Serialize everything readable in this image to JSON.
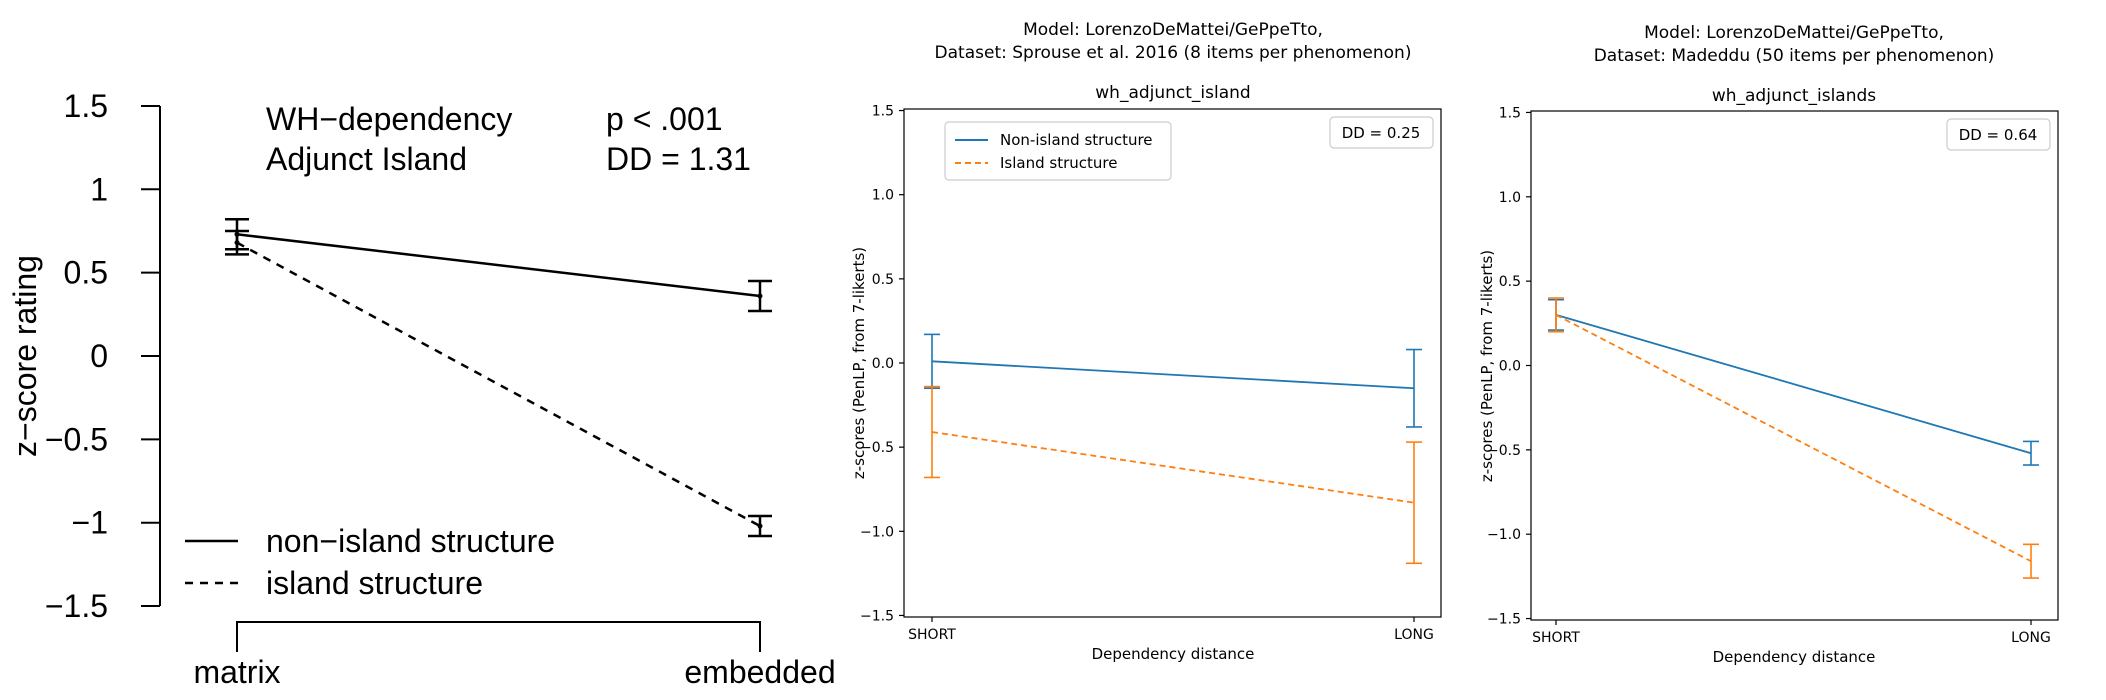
{
  "chart_data": [
    {
      "type": "line",
      "title": "",
      "ylabel": "z−score rating",
      "xlabel": "",
      "categories": [
        "matrix",
        "embedded"
      ],
      "ylim": [
        -1.5,
        1.5
      ],
      "yticks": [
        1.5,
        1,
        0.5,
        0,
        -0.5,
        -1,
        -1.5
      ],
      "ytick_labels": [
        "1.5",
        "1",
        "0.5",
        "0",
        "−0.5",
        "−1",
        "−1.5"
      ],
      "annotations": {
        "line1_left": "WH−dependency",
        "line1_right": "p < .001",
        "line2_left": "Adjunct Island",
        "line2_right": "DD = 1.31"
      },
      "legend_position": "bottom-left",
      "series": [
        {
          "name": "non−island structure",
          "values": [
            0.73,
            0.36
          ],
          "err": [
            0.09,
            0.09
          ],
          "style": "solid",
          "color": "#000000"
        },
        {
          "name": "island structure",
          "values": [
            0.68,
            -1.02
          ],
          "err": [
            0.07,
            0.06
          ],
          "style": "dashed",
          "color": "#000000"
        }
      ]
    },
    {
      "type": "line",
      "suptitle": [
        "Model: LorenzoDeMattei/GePpeTto,",
        "Dataset: Sprouse et al. 2016 (8 items per phenomenon)"
      ],
      "title": "wh_adjunct_island",
      "xlabel": "Dependency distance",
      "ylabel": "z-scores (PenLP, from 7-likerts)",
      "categories": [
        "SHORT",
        "LONG"
      ],
      "ylim": [
        -1.5,
        1.5
      ],
      "yticks": [
        1.5,
        1.0,
        0.5,
        0.0,
        -0.5,
        -1.0,
        -1.5
      ],
      "ytick_labels": [
        "1.5",
        "1.0",
        "0.5",
        "0.0",
        "−0.5",
        "−1.0",
        "−1.5"
      ],
      "dd_label": "DD = 0.25",
      "legend_position": "top-left",
      "series": [
        {
          "name": "Non-island structure",
          "values": [
            0.01,
            -0.15
          ],
          "err": [
            0.16,
            0.23
          ],
          "style": "solid",
          "color": "#1f77b4"
        },
        {
          "name": "Island structure",
          "values": [
            -0.41,
            -0.83
          ],
          "err": [
            0.27,
            0.36
          ],
          "style": "dashed",
          "color": "#ff7f0e"
        }
      ]
    },
    {
      "type": "line",
      "suptitle": [
        "Model: LorenzoDeMattei/GePpeTto,",
        "Dataset: Madeddu (50 items per phenomenon)"
      ],
      "title": "wh_adjunct_islands",
      "xlabel": "Dependency distance",
      "ylabel": "z-scores (PenLP, from 7-likerts)",
      "categories": [
        "SHORT",
        "LONG"
      ],
      "ylim": [
        -1.5,
        1.5
      ],
      "yticks": [
        1.5,
        1.0,
        0.5,
        0.0,
        -0.5,
        -1.0,
        -1.5
      ],
      "ytick_labels": [
        "1.5",
        "1.0",
        "0.5",
        "0.0",
        "−0.5",
        "−1.0",
        "−1.5"
      ],
      "dd_label": "DD = 0.64",
      "legend_position": "none",
      "series": [
        {
          "name": "",
          "values": [
            0.3,
            -0.52
          ],
          "err": [
            0.09,
            0.07
          ],
          "style": "solid",
          "color": "#1f77b4"
        },
        {
          "name": "",
          "values": [
            0.3,
            -1.16
          ],
          "err": [
            0.1,
            0.1
          ],
          "style": "dashed",
          "color": "#ff7f0e"
        }
      ]
    }
  ]
}
